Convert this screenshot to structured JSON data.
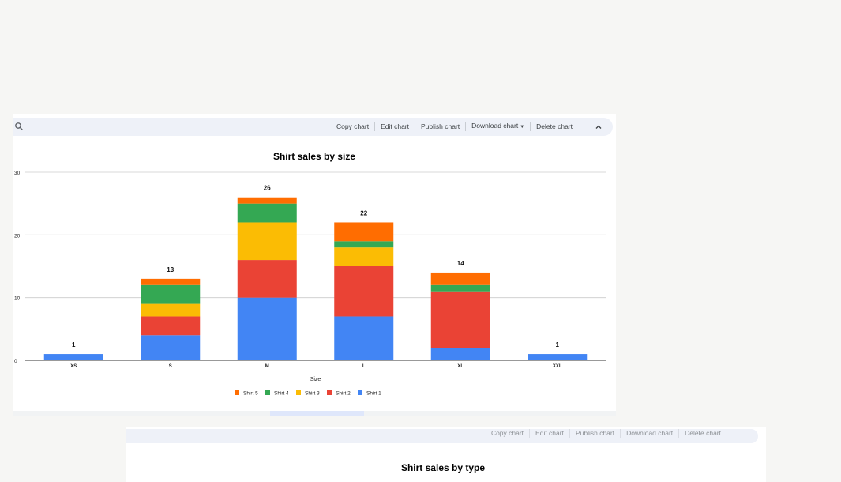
{
  "toolbar": {
    "actions": [
      "Copy chart",
      "Edit chart",
      "Publish chart",
      "Download chart",
      "Delete chart"
    ]
  },
  "chart_data": {
    "type": "bar",
    "stacked": true,
    "title": "Shirt sales by size",
    "xlabel": "Size",
    "ylabel": "",
    "categories": [
      "XS",
      "S",
      "M",
      "L",
      "XL",
      "XXL"
    ],
    "ylim": [
      0,
      30
    ],
    "yticks": [
      0,
      10,
      20,
      30
    ],
    "grid": true,
    "legend_position": "bottom",
    "totals": [
      1,
      13,
      26,
      22,
      14,
      1
    ],
    "series": [
      {
        "name": "Shirt 1",
        "color": "#4285f4",
        "values": [
          1,
          4,
          10,
          7,
          2,
          1
        ]
      },
      {
        "name": "Shirt 2",
        "color": "#ea4335",
        "values": [
          0,
          3,
          6,
          8,
          9,
          0
        ]
      },
      {
        "name": "Shirt 3",
        "color": "#fbbc04",
        "values": [
          0,
          2,
          6,
          3,
          0,
          0
        ]
      },
      {
        "name": "Shirt 4",
        "color": "#34a853",
        "values": [
          0,
          3,
          3,
          1,
          1,
          0
        ]
      },
      {
        "name": "Shirt 5",
        "color": "#ff6d01",
        "values": [
          0,
          1,
          1,
          3,
          2,
          0
        ]
      }
    ]
  },
  "second_chart": {
    "title": "Shirt sales by type"
  }
}
